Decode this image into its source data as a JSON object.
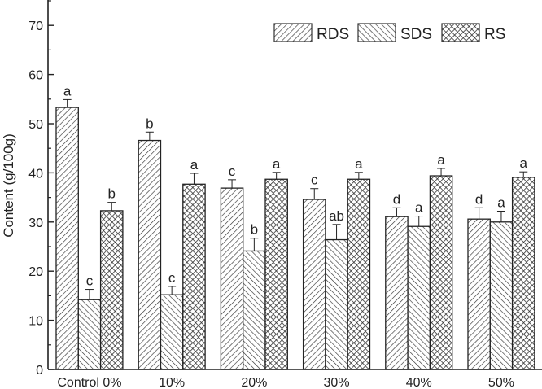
{
  "chart_data": {
    "type": "bar",
    "title": "",
    "xlabel": "",
    "ylabel": "Content (g/100g)",
    "ylim": [
      0,
      75
    ],
    "yticks": [
      0,
      10,
      20,
      30,
      40,
      50,
      60,
      70
    ],
    "grid": false,
    "legend_position": "top-right",
    "categories": [
      "Control 0%",
      "10%",
      "20%",
      "30%",
      "40%",
      "50%"
    ],
    "series": [
      {
        "name": "RDS",
        "pattern": "diagonal-forward",
        "values": [
          53.3,
          46.6,
          36.9,
          34.6,
          31.1,
          30.6
        ],
        "errors": [
          1.6,
          1.7,
          1.7,
          2.2,
          1.8,
          2.3
        ],
        "letters": [
          "a",
          "b",
          "c",
          "c",
          "d",
          "d"
        ]
      },
      {
        "name": "SDS",
        "pattern": "diagonal-backward",
        "values": [
          14.2,
          15.2,
          24.1,
          26.4,
          29.1,
          30.0
        ],
        "errors": [
          2.1,
          1.7,
          2.6,
          3.1,
          2.1,
          2.2
        ],
        "letters": [
          "c",
          "c",
          "b",
          "ab",
          "a",
          "a"
        ]
      },
      {
        "name": "RS",
        "pattern": "crosshatch",
        "values": [
          32.3,
          37.7,
          38.7,
          38.7,
          39.4,
          39.1
        ],
        "errors": [
          1.7,
          2.2,
          1.4,
          1.4,
          1.5,
          1.1
        ],
        "letters": [
          "b",
          "a",
          "a",
          "a",
          "a",
          "a"
        ]
      }
    ]
  }
}
